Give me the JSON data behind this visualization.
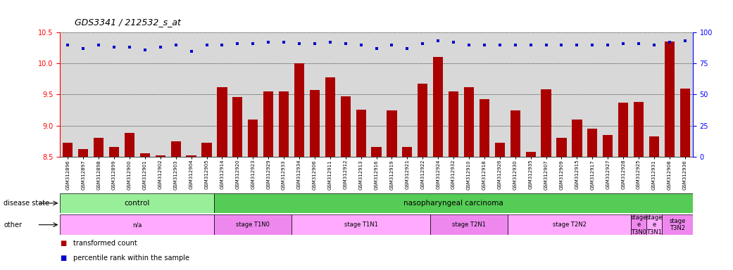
{
  "title": "GDS3341 / 212532_s_at",
  "samples": [
    "GSM312896",
    "GSM312897",
    "GSM312898",
    "GSM312899",
    "GSM312900",
    "GSM312901",
    "GSM312902",
    "GSM312903",
    "GSM312904",
    "GSM312905",
    "GSM312914",
    "GSM312920",
    "GSM312923",
    "GSM312929",
    "GSM312933",
    "GSM312934",
    "GSM312906",
    "GSM312911",
    "GSM312912",
    "GSM312913",
    "GSM312916",
    "GSM312919",
    "GSM312921",
    "GSM312922",
    "GSM312924",
    "GSM312932",
    "GSM312910",
    "GSM312918",
    "GSM312926",
    "GSM312930",
    "GSM312935",
    "GSM312907",
    "GSM312909",
    "GSM312915",
    "GSM312917",
    "GSM312927",
    "GSM312928",
    "GSM312925",
    "GSM312931",
    "GSM312908",
    "GSM312936"
  ],
  "bar_values": [
    8.72,
    8.62,
    8.8,
    8.65,
    8.88,
    8.55,
    8.52,
    8.75,
    8.52,
    8.72,
    9.62,
    9.46,
    9.1,
    9.55,
    9.55,
    10.0,
    9.57,
    9.78,
    9.47,
    9.25,
    8.65,
    9.24,
    8.65,
    9.68,
    10.1,
    9.55,
    9.62,
    9.42,
    8.72,
    9.24,
    8.58,
    9.58,
    8.8,
    9.1,
    8.95,
    8.85,
    9.37,
    9.38,
    8.82,
    10.35,
    9.6
  ],
  "percentile_right": [
    90,
    87,
    90,
    88,
    88,
    86,
    88,
    90,
    85,
    90,
    90,
    91,
    91,
    92,
    92,
    91,
    91,
    92,
    91,
    90,
    87,
    90,
    87,
    91,
    93,
    92,
    90,
    90,
    90,
    90,
    90,
    90,
    90,
    90,
    90,
    90,
    91,
    91,
    90,
    92,
    93
  ],
  "ylim_left": [
    8.5,
    10.5
  ],
  "ylim_right": [
    0,
    100
  ],
  "yticks_left": [
    8.5,
    9.0,
    9.5,
    10.0,
    10.5
  ],
  "yticks_right": [
    0,
    25,
    50,
    75,
    100
  ],
  "bar_color": "#aa0000",
  "dot_color": "#0000cc",
  "plot_bg_color": "#d8d8d8",
  "disease_state_groups": [
    {
      "label": "control",
      "start": 0,
      "end": 10,
      "color": "#99ee99"
    },
    {
      "label": "nasopharyngeal carcinoma",
      "start": 10,
      "end": 41,
      "color": "#55cc55"
    }
  ],
  "other_groups": [
    {
      "label": "n/a",
      "start": 0,
      "end": 10,
      "color": "#ffaaff"
    },
    {
      "label": "stage T1N0",
      "start": 10,
      "end": 15,
      "color": "#ee88ee"
    },
    {
      "label": "stage T1N1",
      "start": 15,
      "end": 24,
      "color": "#ffaaff"
    },
    {
      "label": "stage T2N1",
      "start": 24,
      "end": 29,
      "color": "#ee88ee"
    },
    {
      "label": "stage T2N2",
      "start": 29,
      "end": 37,
      "color": "#ffaaff"
    },
    {
      "label": "stage\ne\nT3N0",
      "start": 37,
      "end": 38,
      "color": "#ee88ee"
    },
    {
      "label": "stage\ne\nT3N1",
      "start": 38,
      "end": 39,
      "color": "#ffaaff"
    },
    {
      "label": "stage\nT3N2",
      "start": 39,
      "end": 41,
      "color": "#ee88ee"
    }
  ],
  "disease_row_label": "disease state",
  "other_row_label": "other",
  "legend_items": [
    {
      "label": "transformed count",
      "color": "#aa0000"
    },
    {
      "label": "percentile rank within the sample",
      "color": "#0000cc"
    }
  ]
}
